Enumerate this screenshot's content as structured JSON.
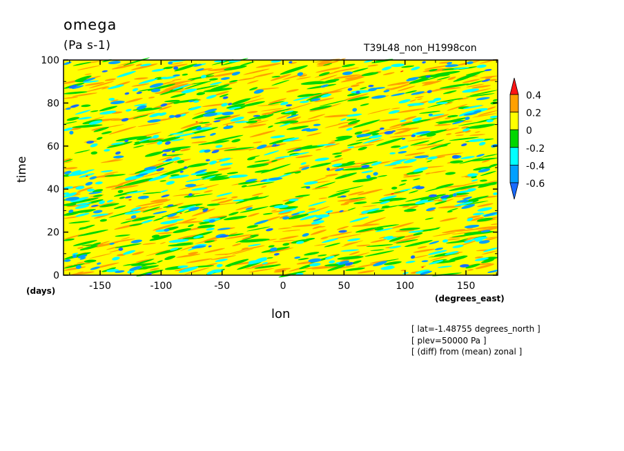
{
  "header": {
    "title": "omega",
    "units": "(Pa s-1)",
    "run_label": "T39L48_non_H1998con"
  },
  "axes": {
    "ylabel": "time",
    "xlabel": "lon",
    "y_unit": "(days)",
    "x_unit": "(degrees_east)"
  },
  "info_lines": [
    "[ lat=-1.48755 degrees_north ]",
    "[ plev=50000 Pa ]",
    "[ (diff) from (mean) zonal ]"
  ],
  "colors": {
    "lt_neg06": "#1a6bff",
    "neg06_neg04": "#00a0ff",
    "neg04_neg02": "#00ffff",
    "neg02_0": "#00d700",
    "0_02": "#ffff00",
    "02_04": "#ffa000",
    "gt_04": "#ff1414"
  },
  "chart_data": {
    "type": "heatmap",
    "title": "omega",
    "xlabel": "lon",
    "ylabel": "time",
    "xlim": [
      -180,
      176
    ],
    "ylim": [
      0,
      100
    ],
    "x_ticks": [
      "-150",
      "-100",
      "-50",
      "0",
      "50",
      "100",
      "150"
    ],
    "x_tick_values": [
      -150,
      -100,
      -50,
      0,
      50,
      100,
      150
    ],
    "y_ticks": [
      "0",
      "20",
      "40",
      "60",
      "80",
      "100"
    ],
    "y_tick_values": [
      0,
      20,
      40,
      60,
      80,
      100
    ],
    "colorbar": {
      "levels": [
        "0.4",
        "0.2",
        "0",
        "-0.2",
        "-0.4",
        "-0.6"
      ],
      "level_values": [
        0.4,
        0.2,
        0,
        -0.2,
        -0.4,
        -0.6
      ]
    }
  }
}
